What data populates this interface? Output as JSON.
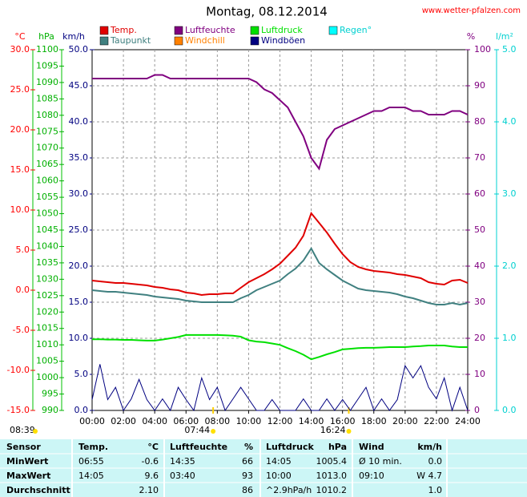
{
  "chart_data": {
    "type": "line",
    "title": "Montag, 08.12.2014",
    "site": "www.wetter-pfalzen.com",
    "updated": "08:39",
    "grid": true,
    "xlim": [
      0,
      24
    ],
    "xticks": [
      {
        "value": 0,
        "label": "00:00"
      },
      {
        "value": 2,
        "label": "02:00"
      },
      {
        "value": 4,
        "label": "04:00"
      },
      {
        "value": 6,
        "label": "06:00"
      },
      {
        "value": 8,
        "label": "08:00"
      },
      {
        "value": 10,
        "label": "10:00"
      },
      {
        "value": 12,
        "label": "12:00"
      },
      {
        "value": 14,
        "label": "14:00"
      },
      {
        "value": 16,
        "label": "16:00"
      },
      {
        "value": 18,
        "label": "18:00"
      },
      {
        "value": 20,
        "label": "20:00"
      },
      {
        "value": 22,
        "label": "22:00"
      },
      {
        "value": 24,
        "label": "24:00"
      }
    ],
    "sun_marks": [
      {
        "value": 7.733,
        "label": "07:44"
      },
      {
        "value": 16.4,
        "label": "16:24"
      }
    ],
    "axes": [
      {
        "unit": "°C",
        "side": "left",
        "color": "#ff0000",
        "lim": [
          -15,
          30
        ],
        "ticks": [
          {
            "value": -15,
            "label": "-15.0"
          },
          {
            "value": -10,
            "label": "-10.0"
          },
          {
            "value": -5,
            "label": "-5.0"
          },
          {
            "value": 0,
            "label": "0.0"
          },
          {
            "value": 5,
            "label": "5.0"
          },
          {
            "value": 10,
            "label": "10.0"
          },
          {
            "value": 15,
            "label": "15.0"
          },
          {
            "value": 20,
            "label": "20.0"
          },
          {
            "value": 25,
            "label": "25.0"
          },
          {
            "value": 30,
            "label": "30.0"
          }
        ]
      },
      {
        "unit": "hPa",
        "side": "left",
        "color": "#00b000",
        "lim": [
          990,
          1100
        ],
        "ticks": [
          990,
          995,
          1000,
          1005,
          1010,
          1015,
          1020,
          1025,
          1030,
          1035,
          1040,
          1045,
          1050,
          1055,
          1060,
          1065,
          1070,
          1075,
          1080,
          1085,
          1090,
          1095,
          1100
        ]
      },
      {
        "unit": "km/h",
        "side": "left",
        "color": "#000080",
        "lim": [
          0,
          50
        ],
        "ticks": [
          {
            "value": 0,
            "label": "0.0"
          },
          {
            "value": 5,
            "label": "5.0"
          },
          {
            "value": 10,
            "label": "10.0"
          },
          {
            "value": 15,
            "label": "15.0"
          },
          {
            "value": 20,
            "label": "20.0"
          },
          {
            "value": 25,
            "label": "25.0"
          },
          {
            "value": 30,
            "label": "30.0"
          },
          {
            "value": 35,
            "label": "35.0"
          },
          {
            "value": 40,
            "label": "40.0"
          },
          {
            "value": 45,
            "label": "45.0"
          },
          {
            "value": 50,
            "label": "50.0"
          }
        ]
      },
      {
        "unit": "%",
        "side": "right",
        "color": "#800080",
        "lim": [
          0,
          100
        ],
        "ticks": [
          0,
          10,
          20,
          30,
          40,
          50,
          60,
          70,
          80,
          90,
          100
        ]
      },
      {
        "unit": "l/m²",
        "side": "right",
        "color": "#00d0d0",
        "lim": [
          0,
          5
        ],
        "ticks": [
          {
            "value": 0,
            "label": "0.0"
          },
          {
            "value": 1,
            "label": "1.0"
          },
          {
            "value": 2,
            "label": "2.0"
          },
          {
            "value": 3,
            "label": "3.0"
          },
          {
            "value": 4,
            "label": "4.0"
          },
          {
            "value": 5,
            "label": "5.0"
          }
        ]
      }
    ],
    "x": [
      0,
      0.5,
      1,
      1.5,
      2,
      2.5,
      3,
      3.5,
      4,
      4.5,
      5,
      5.5,
      6,
      6.5,
      7,
      7.5,
      8,
      8.5,
      9,
      9.5,
      10,
      10.5,
      11,
      11.5,
      12,
      12.5,
      13,
      13.5,
      14,
      14.5,
      15,
      15.5,
      16,
      16.5,
      17,
      17.5,
      18,
      18.5,
      19,
      19.5,
      20,
      20.5,
      21,
      21.5,
      22,
      22.5,
      23,
      23.5,
      24
    ],
    "series": [
      {
        "name": "Temp.",
        "color": "#e00000",
        "axis": 0,
        "values": [
          1.2,
          1.1,
          1.0,
          0.9,
          0.9,
          0.8,
          0.7,
          0.6,
          0.4,
          0.3,
          0.1,
          0.0,
          -0.3,
          -0.4,
          -0.6,
          -0.5,
          -0.5,
          -0.4,
          -0.4,
          0.3,
          1.0,
          1.5,
          2.0,
          2.6,
          3.3,
          4.3,
          5.3,
          6.8,
          9.6,
          8.4,
          7.2,
          5.8,
          4.5,
          3.5,
          2.9,
          2.6,
          2.4,
          2.3,
          2.2,
          2.0,
          1.9,
          1.7,
          1.5,
          1.0,
          0.8,
          0.7,
          1.2,
          1.3,
          0.9
        ]
      },
      {
        "name": "Taupunkt",
        "color": "#408080",
        "axis": 0,
        "values": [
          0.0,
          -0.1,
          -0.2,
          -0.2,
          -0.3,
          -0.4,
          -0.5,
          -0.6,
          -0.8,
          -0.9,
          -1.0,
          -1.1,
          -1.3,
          -1.4,
          -1.5,
          -1.5,
          -1.5,
          -1.5,
          -1.5,
          -1.0,
          -0.6,
          0.0,
          0.4,
          0.8,
          1.2,
          2.0,
          2.7,
          3.7,
          5.2,
          3.4,
          2.6,
          1.9,
          1.2,
          0.7,
          0.2,
          0.0,
          -0.1,
          -0.2,
          -0.3,
          -0.5,
          -0.8,
          -1.0,
          -1.3,
          -1.6,
          -1.8,
          -1.8,
          -1.6,
          -1.8,
          -1.6
        ]
      },
      {
        "name": "Luftfeuchte",
        "color": "#800080",
        "axis": 3,
        "values": [
          92,
          92,
          92,
          92,
          92,
          92,
          92,
          92,
          93,
          93,
          92,
          92,
          92,
          92,
          92,
          92,
          92,
          92,
          92,
          92,
          92,
          91,
          89,
          88,
          86,
          84,
          80,
          76,
          70,
          67,
          75,
          78,
          79,
          80,
          81,
          82,
          83,
          83,
          84,
          84,
          84,
          83,
          83,
          82,
          82,
          82,
          83,
          83,
          82
        ]
      },
      {
        "name": "Windchill",
        "color": "#ff8000",
        "axis": 0
      },
      {
        "name": "Luftdruck",
        "color": "#00e000",
        "axis": 1,
        "values": [
          1011.7,
          1011.7,
          1011.6,
          1011.6,
          1011.5,
          1011.5,
          1011.4,
          1011.3,
          1011.3,
          1011.6,
          1012.0,
          1012.4,
          1013.0,
          1013.0,
          1013.0,
          1013.0,
          1013.0,
          1012.9,
          1012.8,
          1012.5,
          1011.4,
          1011.0,
          1010.8,
          1010.4,
          1010.0,
          1009.0,
          1008.1,
          1007.0,
          1005.6,
          1006.3,
          1007.1,
          1007.8,
          1008.6,
          1008.8,
          1009.0,
          1009.1,
          1009.1,
          1009.2,
          1009.3,
          1009.3,
          1009.3,
          1009.5,
          1009.6,
          1009.8,
          1009.8,
          1009.8,
          1009.5,
          1009.3,
          1009.3
        ]
      },
      {
        "name": "Windböen",
        "color": "#000080",
        "axis": 2,
        "values": [
          1.5,
          6.4,
          1.5,
          3.2,
          0.0,
          1.6,
          4.3,
          1.5,
          0.0,
          1.6,
          0.0,
          3.2,
          1.5,
          0.0,
          4.5,
          1.5,
          3.2,
          0.0,
          1.6,
          3.2,
          1.6,
          0.0,
          0.0,
          1.5,
          0.0,
          0.0,
          0.0,
          1.6,
          0.0,
          0.0,
          1.6,
          0.0,
          1.5,
          0.0,
          1.6,
          3.2,
          0.0,
          1.6,
          0.0,
          1.5,
          6.2,
          4.5,
          6.2,
          3.2,
          1.6,
          4.5,
          0.0,
          3.2,
          0.0
        ]
      },
      {
        "name": "Regen°",
        "color": "#00ffff",
        "axis": 4
      }
    ]
  },
  "table": {
    "header": [
      "Sensor",
      "Temp.",
      "°C",
      "Luftfeuchte",
      "%",
      "Luftdruck",
      "hPa",
      "Wind",
      "km/h"
    ],
    "rows": [
      [
        "MinWert",
        "06:55",
        "-0.6",
        "14:35",
        "66",
        "14:05",
        "1005.4",
        "Ø 10 min.",
        "0.0"
      ],
      [
        "MaxWert",
        "14:05",
        "9.6",
        "03:40",
        "93",
        "10:00",
        "1013.0",
        "09:10",
        "W 4.7"
      ],
      [
        "Durchschnitt",
        null,
        "2.10",
        null,
        "86",
        "^2.9hPa/h",
        "1010.2",
        null,
        "1.0"
      ]
    ]
  }
}
